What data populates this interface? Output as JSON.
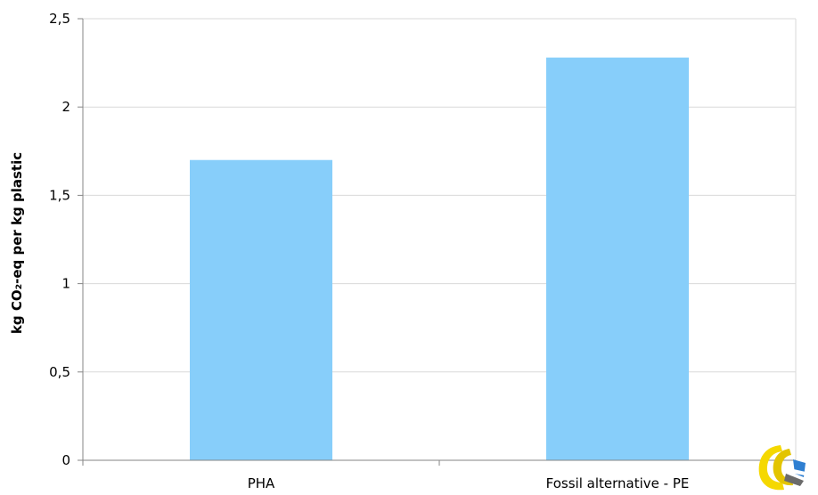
{
  "chart_data": {
    "type": "bar",
    "categories": [
      "PHA",
      "Fossil alternative - PE"
    ],
    "values": [
      1.7,
      2.28
    ],
    "ylabel": "kg CO₂-eq per kg plastic",
    "ylim": [
      0,
      2.5
    ],
    "yticks": [
      0,
      0.5,
      1,
      1.5,
      2,
      2.5
    ],
    "ytick_labels": [
      "0",
      "0,5",
      "1",
      "1,5",
      "2",
      "2,5"
    ],
    "grid": true,
    "bar_color": "#87cefa",
    "grid_color": "#d9d9d9",
    "axis_color": "#868686"
  },
  "logo": {
    "icon": "company-logo-icon",
    "colors": [
      "#f5d800",
      "#2f7fd1",
      "#6b6b6b"
    ]
  }
}
